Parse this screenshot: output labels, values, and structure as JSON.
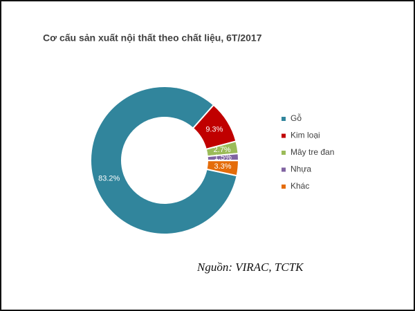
{
  "chart_data": {
    "type": "donut",
    "title": "Cơ cấu sản xuất nội thất theo chất liệu, 6T/2017",
    "categories": [
      "Gỗ",
      "Kim loại",
      "Mây tre đan",
      "Nhựa",
      "Khác"
    ],
    "values": [
      83.2,
      9.3,
      2.7,
      1.5,
      3.3
    ],
    "value_labels": [
      "83.2%",
      "9.3%",
      "2.7%",
      "1.5%",
      "3.3%"
    ],
    "colors": [
      "#31859c",
      "#c00000",
      "#9bbb59",
      "#8064a2",
      "#e46c0a"
    ],
    "legend": "right",
    "source": "Nguồn: VIRAC, TCTK"
  }
}
